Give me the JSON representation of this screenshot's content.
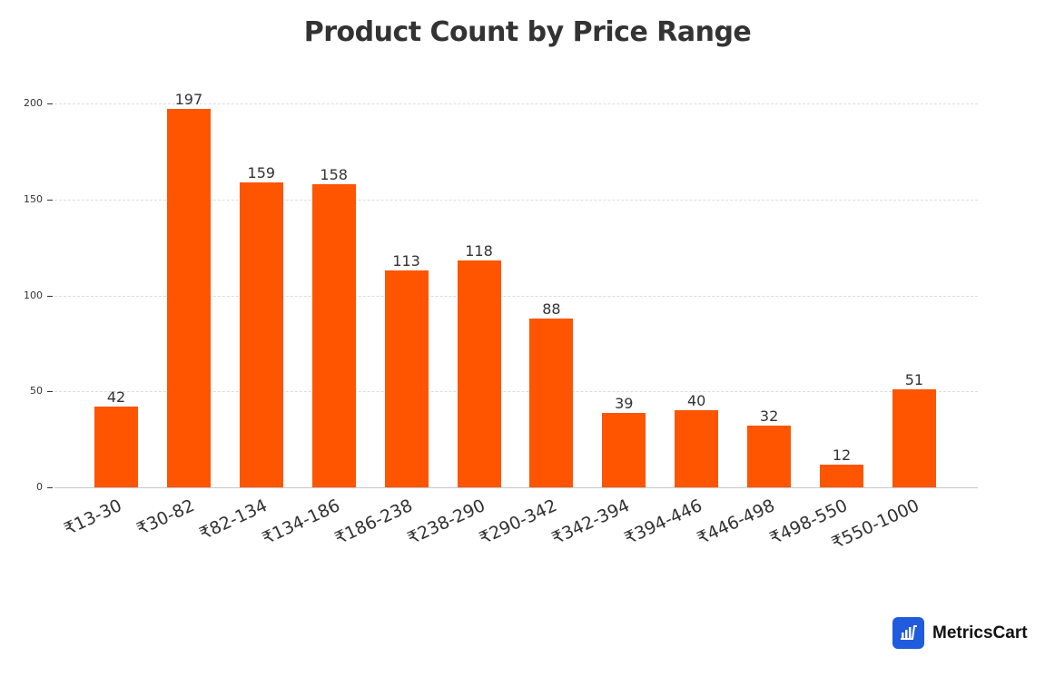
{
  "chart_data": {
    "type": "bar",
    "title": "Product Count by Price Range",
    "xlabel": "",
    "ylabel": "",
    "categories": [
      "₹13-30",
      "₹30-82",
      "₹82-134",
      "₹134-186",
      "₹186-238",
      "₹238-290",
      "₹290-342",
      "₹342-394",
      "₹394-446",
      "₹446-498",
      "₹498-550",
      "₹550-1000"
    ],
    "values": [
      42,
      197,
      159,
      158,
      113,
      118,
      88,
      39,
      40,
      32,
      12,
      51
    ],
    "ylim": [
      0,
      200
    ],
    "yticks": [
      0,
      50,
      100,
      150,
      200
    ],
    "grid": true,
    "legend": null,
    "bar_color": "#ff5500",
    "data_labels": true
  },
  "branding": {
    "name": "MetricsCart",
    "icon": "bar-chart-cart-icon",
    "icon_color": "#1f5bdc"
  }
}
